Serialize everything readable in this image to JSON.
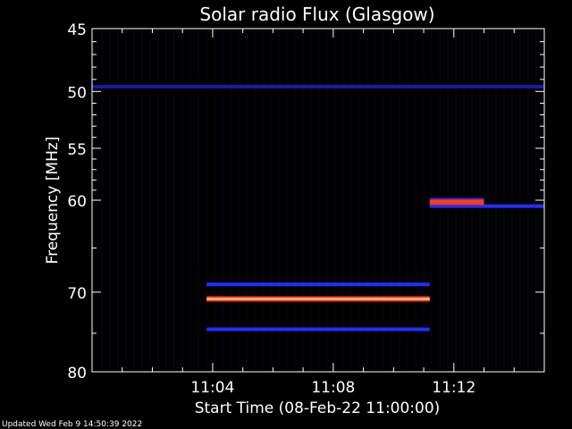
{
  "chart_data": {
    "type": "heatmap",
    "title": "Solar radio Flux (Glasgow)",
    "xlabel": "Start Time (08-Feb-22 11:00:00)",
    "ylabel": "Frequency [MHz]",
    "footer": "Updated Wed Feb  9 14:50:39 2022",
    "ylim": [
      45,
      80
    ],
    "y_ticks": [
      45,
      50,
      55,
      60,
      70,
      80
    ],
    "y_tick_labels": [
      "45",
      "50",
      "55",
      "60",
      "70",
      "80"
    ],
    "xlim_minutes": [
      0,
      15
    ],
    "x_ticks_minutes": [
      4,
      8,
      12
    ],
    "x_tick_labels": [
      "11:04",
      "11:08",
      "11:12"
    ],
    "grid": false,
    "colors": {
      "background": "#000000",
      "axes": "#ffffff",
      "low_emission": "#1a1aa8",
      "medium_emission": "#2030ff",
      "high_emission": "#ff3a1a",
      "peak_emission": "#ffd0a0"
    },
    "features": [
      {
        "kind": "band",
        "freq": 49.6,
        "t_start": 0.0,
        "t_end": 15.0,
        "level": "low"
      },
      {
        "kind": "band",
        "freq": 69.1,
        "t_start": 3.8,
        "t_end": 11.2,
        "level": "medium"
      },
      {
        "kind": "band",
        "freq": 70.8,
        "t_start": 3.8,
        "t_end": 11.2,
        "level": "high"
      },
      {
        "kind": "band",
        "freq": 74.5,
        "t_start": 3.8,
        "t_end": 11.2,
        "level": "medium"
      },
      {
        "kind": "band",
        "freq": 60.6,
        "t_start": 11.2,
        "t_end": 15.0,
        "level": "medium"
      },
      {
        "kind": "burst",
        "freq": 60.2,
        "t_start": 11.2,
        "t_end": 13.0,
        "level": "high"
      }
    ]
  }
}
